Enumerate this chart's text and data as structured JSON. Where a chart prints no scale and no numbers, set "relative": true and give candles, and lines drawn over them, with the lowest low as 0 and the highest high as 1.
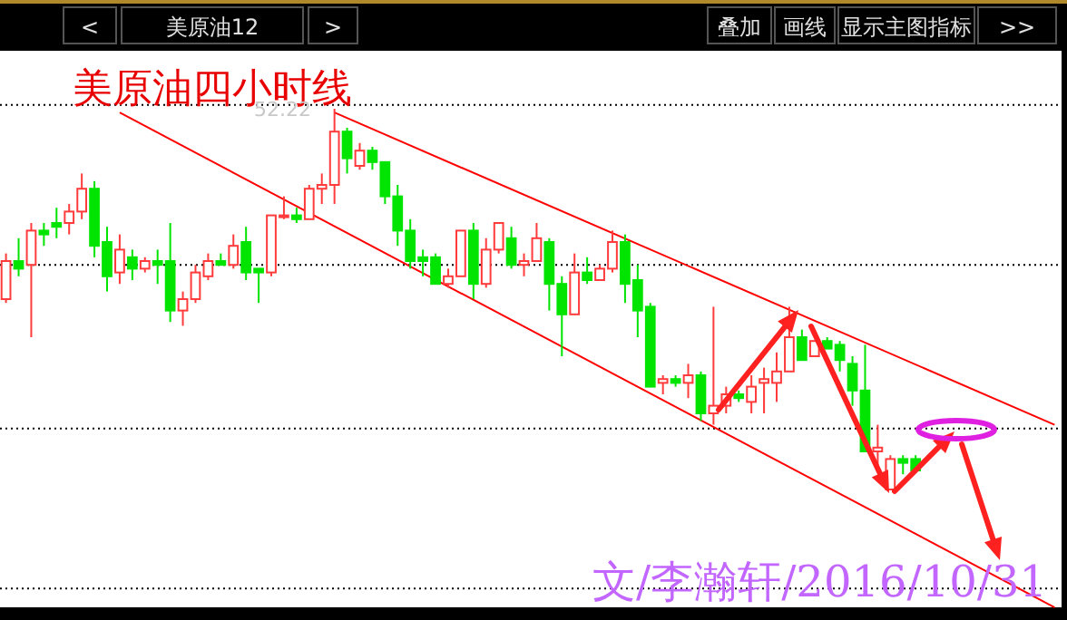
{
  "chart_data": {
    "type": "candlestick",
    "title": "美原油四小时线",
    "relative": true,
    "ref_lines": [
      {
        "axis": "y",
        "value": 1.01,
        "color": "#000000",
        "line_style": "dotted"
      },
      {
        "axis": "y",
        "value": 0.59,
        "color": "#000000",
        "line_style": "dotted"
      },
      {
        "axis": "y",
        "value": 0.16,
        "color": "#000000",
        "line_style": "dotted"
      },
      {
        "axis": "y",
        "value": -0.26,
        "color": "#000000",
        "line_style": "dotted"
      }
    ],
    "annotations": [
      "<",
      "美原油12",
      ">",
      "叠加",
      "画线",
      "显示主图指标",
      ">>",
      "52.22",
      "文/李瀚轩/2016/10/31"
    ],
    "categories": [
      null,
      null,
      null,
      null,
      null,
      null,
      null,
      null,
      null,
      null,
      null,
      null,
      null,
      null,
      null,
      null,
      null,
      null,
      null,
      null,
      null,
      null,
      null,
      null,
      null,
      null,
      null,
      null,
      null,
      null,
      null,
      null,
      null,
      null,
      null,
      null,
      null,
      null,
      null,
      null,
      null,
      null,
      null,
      null,
      null,
      null,
      null,
      null,
      null,
      null,
      null,
      null,
      null,
      null,
      null,
      null,
      null,
      null,
      null,
      null,
      null,
      null,
      null,
      null,
      null,
      null,
      null,
      null,
      null,
      null,
      null,
      null,
      null,
      null,
      null,
      null,
      null,
      null,
      null,
      null,
      null,
      null,
      null,
      null
    ],
    "ohlc": [
      [
        0.5,
        0.62,
        0.49,
        0.6
      ],
      [
        0.6,
        0.66,
        0.56,
        0.58
      ],
      [
        0.59,
        0.7,
        0.4,
        0.68
      ],
      [
        0.68,
        0.7,
        0.64,
        0.67
      ],
      [
        0.7,
        0.74,
        0.66,
        0.69
      ],
      [
        0.7,
        0.75,
        0.67,
        0.73
      ],
      [
        0.73,
        0.83,
        0.71,
        0.79
      ],
      [
        0.79,
        0.81,
        0.61,
        0.64
      ],
      [
        0.65,
        0.69,
        0.52,
        0.56
      ],
      [
        0.57,
        0.67,
        0.54,
        0.63
      ],
      [
        0.61,
        0.63,
        0.55,
        0.58
      ],
      [
        0.58,
        0.61,
        0.57,
        0.6
      ],
      [
        0.6,
        0.63,
        0.54,
        0.59
      ],
      [
        0.6,
        0.7,
        0.44,
        0.47
      ],
      [
        0.47,
        0.52,
        0.43,
        0.5
      ],
      [
        0.5,
        0.59,
        0.49,
        0.57
      ],
      [
        0.56,
        0.62,
        0.55,
        0.6
      ],
      [
        0.6,
        0.62,
        0.59,
        0.59
      ],
      [
        0.59,
        0.67,
        0.58,
        0.64
      ],
      [
        0.65,
        0.69,
        0.55,
        0.57
      ],
      [
        0.58,
        0.58,
        0.49,
        0.57
      ],
      [
        0.57,
        0.72,
        0.56,
        0.72
      ],
      [
        0.72,
        0.77,
        0.71,
        0.72
      ],
      [
        0.72,
        0.74,
        0.7,
        0.71
      ],
      [
        0.71,
        0.8,
        0.71,
        0.79
      ],
      [
        0.79,
        0.83,
        0.75,
        0.8
      ],
      [
        0.8,
        1.0,
        0.75,
        0.94
      ],
      [
        0.94,
        0.95,
        0.83,
        0.87
      ],
      [
        0.85,
        0.91,
        0.84,
        0.89
      ],
      [
        0.89,
        0.9,
        0.84,
        0.86
      ],
      [
        0.86,
        0.86,
        0.75,
        0.77
      ],
      [
        0.77,
        0.8,
        0.64,
        0.68
      ],
      [
        0.68,
        0.71,
        0.58,
        0.6
      ],
      [
        0.61,
        0.63,
        0.56,
        0.6
      ],
      [
        0.61,
        0.62,
        0.54,
        0.54
      ],
      [
        0.54,
        0.58,
        0.53,
        0.56
      ],
      [
        0.56,
        0.68,
        0.56,
        0.68
      ],
      [
        0.68,
        0.7,
        0.5,
        0.54
      ],
      [
        0.54,
        0.66,
        0.53,
        0.63
      ],
      [
        0.63,
        0.7,
        0.62,
        0.7
      ],
      [
        0.66,
        0.69,
        0.58,
        0.59
      ],
      [
        0.59,
        0.62,
        0.56,
        0.6
      ],
      [
        0.6,
        0.7,
        0.6,
        0.66
      ],
      [
        0.65,
        0.66,
        0.47,
        0.54
      ],
      [
        0.54,
        0.56,
        0.35,
        0.46
      ],
      [
        0.46,
        0.62,
        0.46,
        0.57
      ],
      [
        0.57,
        0.61,
        0.54,
        0.55
      ],
      [
        0.55,
        0.59,
        0.55,
        0.58
      ],
      [
        0.58,
        0.68,
        0.57,
        0.65
      ],
      [
        0.65,
        0.67,
        0.49,
        0.54
      ],
      [
        0.55,
        0.59,
        0.4,
        0.47
      ],
      [
        0.48,
        0.49,
        0.27,
        0.27
      ],
      [
        0.28,
        0.3,
        0.25,
        0.29
      ],
      [
        0.29,
        0.3,
        0.27,
        0.28
      ],
      [
        0.28,
        0.33,
        0.24,
        0.3
      ],
      [
        0.3,
        0.31,
        0.18,
        0.2
      ],
      [
        0.2,
        0.48,
        0.17,
        0.22
      ],
      [
        0.22,
        0.27,
        0.2,
        0.25
      ],
      [
        0.25,
        0.26,
        0.23,
        0.24
      ],
      [
        0.23,
        0.3,
        0.2,
        0.27
      ],
      [
        0.28,
        0.32,
        0.2,
        0.29
      ],
      [
        0.28,
        0.36,
        0.23,
        0.31
      ],
      [
        0.31,
        0.48,
        0.31,
        0.4
      ],
      [
        0.4,
        0.42,
        0.34,
        0.34
      ],
      [
        0.35,
        0.39,
        0.35,
        0.39
      ],
      [
        0.39,
        0.4,
        0.37,
        0.37
      ],
      [
        0.38,
        0.39,
        0.31,
        0.34
      ],
      [
        0.33,
        0.35,
        0.22,
        0.26
      ],
      [
        0.26,
        0.38,
        0.1,
        0.1
      ],
      [
        0.1,
        0.17,
        0.06,
        0.11
      ],
      [
        0.0,
        0.09,
        0.0,
        0.08
      ],
      [
        0.08,
        0.09,
        0.04,
        0.07
      ],
      [
        0.08,
        0.09,
        0.05,
        0.05
      ],
      null,
      null,
      null,
      null,
      null,
      null,
      null,
      null,
      null,
      null,
      null
    ],
    "series": [
      {
        "type": "line",
        "color": "#ff0000",
        "values": [
          null,
          null,
          null,
          null,
          null,
          null,
          null,
          null,
          null,
          null,
          null,
          null,
          null,
          null,
          null,
          null,
          null,
          null,
          null,
          null,
          null,
          null,
          null,
          null,
          null,
          null,
          0.99,
          null,
          null,
          null,
          null,
          null,
          null,
          null,
          null,
          null,
          null,
          null,
          null,
          null,
          null,
          null,
          null,
          null,
          null,
          null,
          null,
          null,
          null,
          null,
          null,
          null,
          null,
          null,
          null,
          null,
          null,
          null,
          null,
          null,
          null,
          null,
          null,
          null,
          null,
          null,
          null,
          null,
          null,
          null,
          null,
          null,
          null,
          null,
          null,
          null,
          null,
          null,
          null,
          null,
          null,
          null,
          null,
          0.17
        ]
      },
      {
        "type": "line",
        "color": "#ff0000",
        "values": [
          null,
          null,
          null,
          null,
          null,
          null,
          null,
          null,
          null,
          0.99,
          null,
          null,
          null,
          null,
          null,
          null,
          null,
          null,
          null,
          null,
          null,
          null,
          null,
          null,
          null,
          null,
          null,
          null,
          null,
          null,
          null,
          null,
          null,
          null,
          null,
          null,
          null,
          null,
          null,
          null,
          null,
          null,
          null,
          null,
          null,
          null,
          null,
          null,
          null,
          null,
          null,
          null,
          null,
          null,
          null,
          null,
          null,
          null,
          null,
          null,
          null,
          null,
          null,
          null,
          null,
          null,
          null,
          null,
          null,
          null,
          null,
          null,
          null,
          null,
          null,
          null,
          null,
          null,
          null,
          null,
          null,
          null,
          null,
          -0.31
        ]
      }
    ]
  }
}
